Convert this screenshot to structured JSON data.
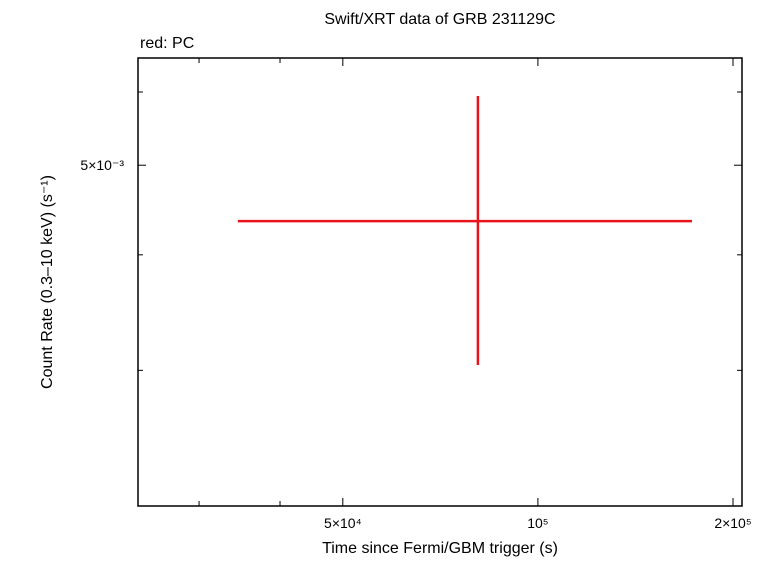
{
  "chart_data": {
    "type": "scatter",
    "title": "Swift/XRT data of GRB 231129C",
    "annotation": "red: PC",
    "x_label": "Time since Fermi/GBM trigger (s)",
    "y_label": "Count Rate (0.3–10 keV) (s⁻¹)",
    "x_log": true,
    "y_log": true,
    "xlim": [
      24150,
      206500
    ],
    "ylim": [
      0.00214,
      0.00653
    ],
    "xticks": [
      {
        "value": 50000,
        "label": "5×10⁴"
      },
      {
        "value": 100000,
        "label": "10⁵"
      },
      {
        "value": 200000,
        "label": "2×10⁵"
      }
    ],
    "minor_xticks": [
      30000,
      40000
    ],
    "yticks": [
      {
        "value": 0.005,
        "label": "5×10⁻³"
      }
    ],
    "minor_yticks": [
      0.003,
      0.004,
      0.006
    ],
    "series": [
      {
        "color": "#e8141c",
        "x": [
          80800
        ],
        "x_low": [
          34430
        ],
        "x_high": [
          172900
        ],
        "values": [
          0.00435
        ],
        "y_low": [
          0.00304
        ],
        "y_high": [
          0.00594
        ]
      }
    ]
  }
}
